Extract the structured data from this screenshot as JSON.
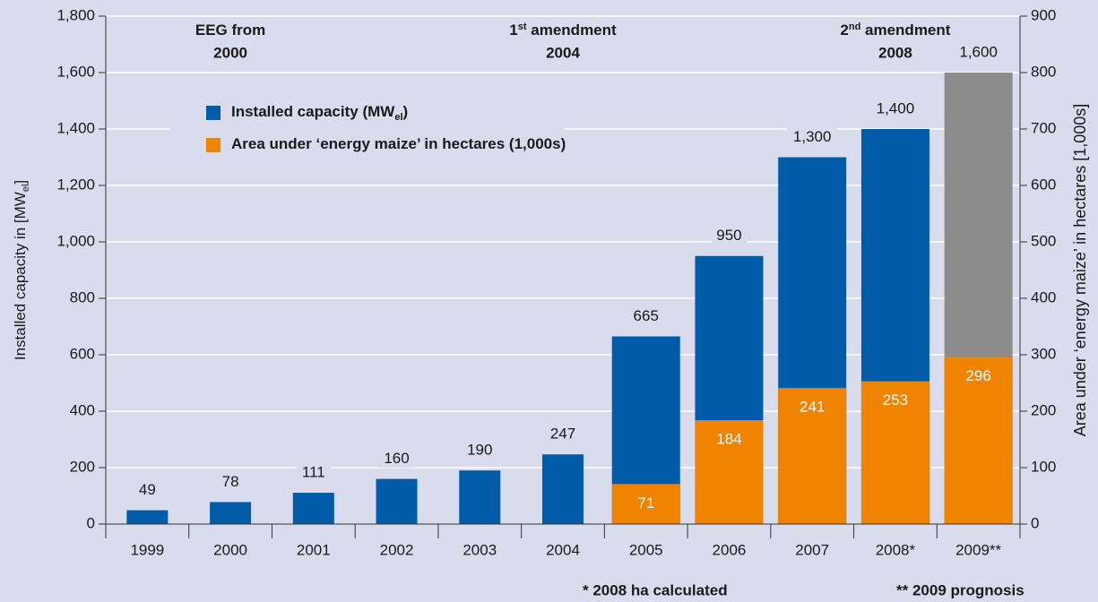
{
  "chart_data": {
    "type": "bar",
    "categories": [
      "1999",
      "2000",
      "2001",
      "2002",
      "2003",
      "2004",
      "2005",
      "2006",
      "2007",
      "2008*",
      "2009**"
    ],
    "series": [
      {
        "name": {
          "text": "Installed capacity (MW",
          "sub": "el",
          "after": ")"
        },
        "color": "#005ca8",
        "colors": [
          "#005ca8",
          "#005ca8",
          "#005ca8",
          "#005ca8",
          "#005ca8",
          "#005ca8",
          "#005ca8",
          "#005ca8",
          "#005ca8",
          "#005ca8",
          "#8c8c8c"
        ],
        "values": [
          49,
          78,
          111,
          160,
          190,
          247,
          665,
          950,
          1300,
          1400,
          1600
        ],
        "value_labels": [
          "49",
          "78",
          "111",
          "160",
          "190",
          "247",
          "665",
          "950",
          "1,300",
          "1,400",
          "1,600"
        ]
      },
      {
        "name": {
          "text": "Area under ‘energy maize’ in hectares (1,000s)"
        },
        "color": "#f08300",
        "axis": "y2",
        "values": [
          null,
          null,
          null,
          null,
          null,
          null,
          71,
          184,
          241,
          253,
          296
        ]
      }
    ],
    "ylim": [
      0,
      1800
    ],
    "yticks": [
      0,
      {
        "value": 200,
        "label": "200"
      },
      400,
      600,
      800,
      {
        "value": 1000,
        "label": "1,000"
      },
      {
        "value": 1200,
        "label": "1,200"
      },
      {
        "value": 1400,
        "label": "1,400"
      },
      {
        "value": 1600,
        "label": "1,600"
      },
      {
        "value": 1800,
        "label": "1,800"
      }
    ],
    "y2lim": [
      0,
      900
    ],
    "y2ticks": [
      0,
      100,
      200,
      300,
      400,
      500,
      600,
      700,
      800,
      900
    ],
    "y_label": {
      "text": "Installed capacity in [MW",
      "sub": "el",
      "after": "]"
    },
    "y2_label": "Area under ‘energy maize’ in hectares [1,000s]",
    "annotations": [
      {
        "line1": [
          "EEG from"
        ],
        "line2": "2000",
        "category": 1
      },
      {
        "line1": [
          "1",
          "st",
          " amendment"
        ],
        "line2": "2004",
        "category": 5
      },
      {
        "line1": [
          "2",
          "nd",
          " amendment"
        ],
        "line2": "2008",
        "category": 9
      }
    ],
    "footnotes": [
      "* 2008 ha calculated",
      "** 2009 prognosis"
    ],
    "grid": true
  }
}
